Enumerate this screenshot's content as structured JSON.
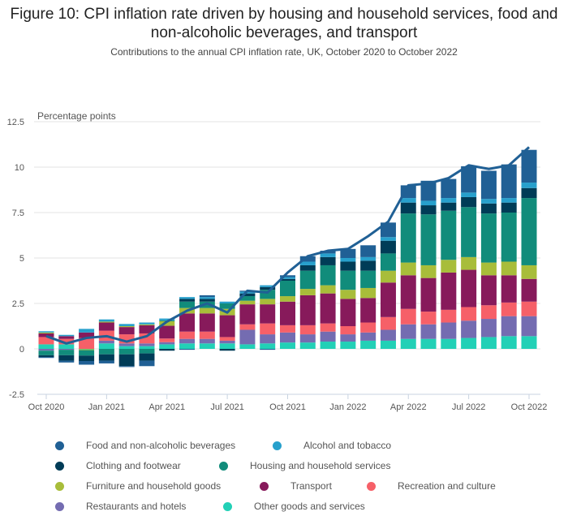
{
  "chart_data": {
    "type": "bar",
    "stacked": true,
    "title": "Figure 10: CPI inflation rate driven by housing and household services, food and non-alcoholic beverages, and transport",
    "subtitle": "Contributions to the annual CPI inflation rate, UK, October 2020 to October 2022",
    "ylabel": "Percentage points",
    "xlabel": "",
    "ylim": [
      -2.5,
      12.5
    ],
    "yticks": [
      "12.5",
      "10",
      "7.5",
      "5",
      "2.5",
      "0",
      "-2.5"
    ],
    "ytick_values": [
      12.5,
      10,
      7.5,
      5,
      2.5,
      0,
      -2.5
    ],
    "grid": true,
    "legend_position": "bottom",
    "categories": [
      "Oct 2020",
      "Nov 2020",
      "Dec 2020",
      "Jan 2021",
      "Feb 2021",
      "Mar 2021",
      "Apr 2021",
      "May 2021",
      "Jun 2021",
      "Jul 2021",
      "Aug 2021",
      "Sep 2021",
      "Oct 2021",
      "Nov 2021",
      "Dec 2021",
      "Jan 2022",
      "Feb 2022",
      "Mar 2022",
      "Apr 2022",
      "May 2022",
      "Jun 2022",
      "Jul 2022",
      "Aug 2022",
      "Sep 2022",
      "Oct 2022"
    ],
    "xtick_labels": [
      "Oct 2020",
      "Jan 2021",
      "Apr 2021",
      "Jul 2021",
      "Oct 2021",
      "Jan 2022",
      "Apr 2022",
      "Jul 2022",
      "Oct 2022"
    ],
    "xtick_indices": [
      0,
      3,
      6,
      9,
      12,
      15,
      18,
      21,
      24
    ],
    "series": [
      {
        "name": "Other goods and services",
        "color": "#22d0b6",
        "values": [
          0.25,
          0.25,
          -0.02,
          0.3,
          0.15,
          0.15,
          0.25,
          0.3,
          0.3,
          0.3,
          0.25,
          0.3,
          0.35,
          0.35,
          0.4,
          0.4,
          0.45,
          0.45,
          0.55,
          0.55,
          0.55,
          0.6,
          0.65,
          0.7,
          0.7
        ]
      },
      {
        "name": "Restaurants and hotels",
        "color": "#746cb1",
        "values": [
          -0.1,
          -0.05,
          0.0,
          0.15,
          0.15,
          0.15,
          0.12,
          0.25,
          0.25,
          0.15,
          0.8,
          0.5,
          0.55,
          0.45,
          0.55,
          0.4,
          0.45,
          0.6,
          0.8,
          0.8,
          0.9,
          0.95,
          1.0,
          1.1,
          1.1
        ]
      },
      {
        "name": "Recreation and culture",
        "color": "#f66068",
        "values": [
          0.4,
          0.3,
          0.6,
          0.55,
          0.5,
          0.55,
          0.2,
          0.4,
          0.4,
          0.2,
          0.3,
          0.6,
          0.4,
          0.5,
          0.45,
          0.45,
          0.55,
          0.7,
          0.85,
          0.7,
          0.7,
          0.75,
          0.75,
          0.75,
          0.8
        ]
      },
      {
        "name": "Transport",
        "color": "#871a5b",
        "values": [
          0.2,
          0.15,
          0.3,
          0.45,
          0.4,
          0.45,
          0.7,
          1.0,
          1.0,
          1.2,
          1.1,
          1.05,
          1.3,
          1.65,
          1.65,
          1.5,
          1.35,
          1.9,
          1.85,
          1.85,
          2.05,
          2.05,
          1.65,
          1.5,
          1.25
        ]
      },
      {
        "name": "Furniture and household goods",
        "color": "#a8bd3a",
        "values": [
          0.05,
          0.0,
          -0.05,
          0.05,
          0.05,
          0.05,
          0.25,
          0.3,
          0.3,
          0.35,
          0.2,
          0.3,
          0.3,
          0.35,
          0.45,
          0.5,
          0.55,
          0.65,
          0.7,
          0.7,
          0.7,
          0.7,
          0.7,
          0.75,
          0.75
        ]
      },
      {
        "name": "Housing and household services",
        "color": "#118c7b",
        "values": [
          -0.25,
          -0.3,
          -0.3,
          -0.3,
          -0.3,
          -0.25,
          0.05,
          0.35,
          0.35,
          0.3,
          0.25,
          0.5,
          0.85,
          1.0,
          1.1,
          1.05,
          0.95,
          0.95,
          2.7,
          2.8,
          2.7,
          2.75,
          2.7,
          2.7,
          3.7
        ]
      },
      {
        "name": "Clothing and footwear",
        "color": "#003c57",
        "values": [
          -0.1,
          -0.3,
          -0.3,
          -0.35,
          -0.65,
          -0.4,
          -0.1,
          0.15,
          0.15,
          -0.1,
          0.15,
          0.15,
          0.1,
          0.3,
          0.45,
          0.5,
          0.55,
          0.7,
          0.6,
          0.5,
          0.45,
          0.55,
          0.55,
          0.55,
          0.55
        ]
      },
      {
        "name": "Alcohol and tobacco",
        "color": "#27a0cc",
        "values": [
          0.07,
          0.07,
          0.2,
          0.12,
          0.12,
          0.1,
          0.1,
          0.1,
          0.1,
          0.1,
          0.1,
          0.1,
          0.1,
          0.2,
          0.2,
          0.2,
          0.2,
          0.2,
          0.25,
          0.25,
          0.25,
          0.25,
          0.25,
          0.25,
          0.3
        ]
      },
      {
        "name": "Food and non-alcoholic beverages",
        "color": "#206095",
        "values": [
          -0.05,
          -0.1,
          -0.2,
          -0.15,
          -0.05,
          -0.3,
          0.0,
          -0.05,
          0.1,
          0.0,
          0.05,
          -0.05,
          0.1,
          0.3,
          0.15,
          0.5,
          0.65,
          0.8,
          0.7,
          1.1,
          1.05,
          1.45,
          1.55,
          1.85,
          1.8
        ]
      }
    ],
    "line": {
      "name": "CPI inflation rate",
      "color": "#206095",
      "values": [
        0.7,
        0.3,
        0.6,
        0.7,
        0.4,
        0.7,
        1.5,
        2.1,
        2.5,
        2.0,
        3.2,
        3.1,
        4.2,
        5.1,
        5.4,
        5.5,
        6.2,
        7.0,
        9.0,
        9.1,
        9.4,
        10.1,
        9.9,
        10.1,
        11.1
      ]
    }
  },
  "legend": [
    {
      "label": "Food and non-alcoholic beverages",
      "color": "#206095"
    },
    {
      "label": "Alcohol and tobacco",
      "color": "#27a0cc"
    },
    {
      "label": "Clothing and footwear",
      "color": "#003c57"
    },
    {
      "label": "Housing and household services",
      "color": "#118c7b"
    },
    {
      "label": "Furniture and household goods",
      "color": "#a8bd3a"
    },
    {
      "label": "Transport",
      "color": "#871a5b"
    },
    {
      "label": "Recreation and culture",
      "color": "#f66068"
    },
    {
      "label": "Restaurants and hotels",
      "color": "#746cb1"
    },
    {
      "label": "Other goods and services",
      "color": "#22d0b6"
    }
  ]
}
